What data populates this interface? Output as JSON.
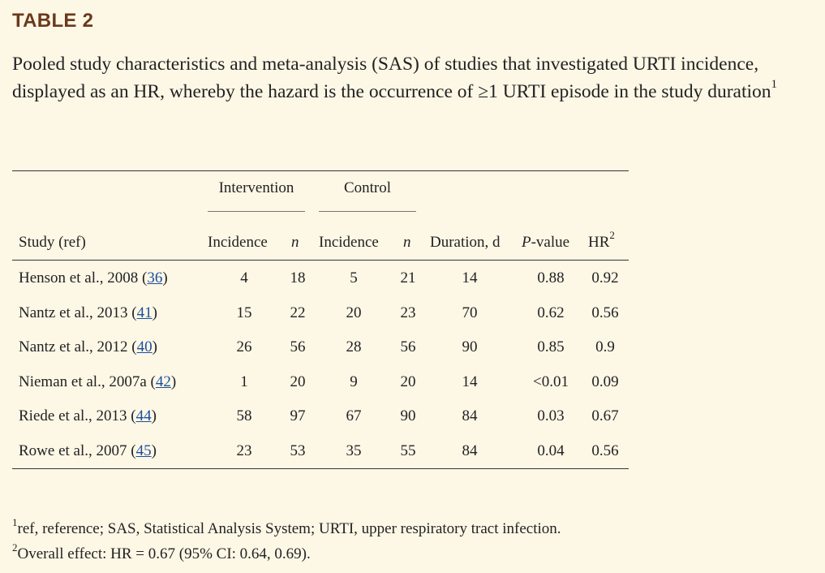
{
  "table_label": "TABLE 2",
  "caption": {
    "text": "Pooled study characteristics and meta-analysis (SAS) of studies that investigated URTI incidence, displayed as an HR, whereby the hazard is the occurrence of ≥1 URTI episode in the study duration",
    "footnote_mark": "1"
  },
  "table": {
    "group_headers": {
      "intervention": "Intervention",
      "control": "Control"
    },
    "columns": {
      "study": "Study (ref)",
      "int_incidence": "Incidence",
      "int_n": "n",
      "ctl_incidence": "Incidence",
      "ctl_n": "n",
      "duration": "Duration, d",
      "pvalue_italic": "P",
      "pvalue_rest": "-value",
      "hr": "HR",
      "hr_mark": "2"
    },
    "rows": [
      {
        "study": "Henson et al., 2008 (",
        "ref": "36",
        "close": ")",
        "int_incidence": "4",
        "int_n": "18",
        "ctl_incidence": "5",
        "ctl_n": "21",
        "duration": "14",
        "pvalue": "0.88",
        "hr": "0.92"
      },
      {
        "study": "Nantz et al., 2013 (",
        "ref": "41",
        "close": ")",
        "int_incidence": "15",
        "int_n": "22",
        "ctl_incidence": "20",
        "ctl_n": "23",
        "duration": "70",
        "pvalue": "0.62",
        "hr": "0.56"
      },
      {
        "study": "Nantz et al., 2012 (",
        "ref": "40",
        "close": ")",
        "int_incidence": "26",
        "int_n": "56",
        "ctl_incidence": "28",
        "ctl_n": "56",
        "duration": "90",
        "pvalue": "0.85",
        "hr": "0.9"
      },
      {
        "study": "Nieman et al., 2007a (",
        "ref": "42",
        "close": ")",
        "int_incidence": "1",
        "int_n": "20",
        "ctl_incidence": "9",
        "ctl_n": "20",
        "duration": "14",
        "pvalue": "<0.01",
        "hr": "0.09"
      },
      {
        "study": "Riede et al., 2013 (",
        "ref": "44",
        "close": ")",
        "int_incidence": "58",
        "int_n": "97",
        "ctl_incidence": "67",
        "ctl_n": "90",
        "duration": "84",
        "pvalue": "0.03",
        "hr": "0.67"
      },
      {
        "study": "Rowe et al., 2007 (",
        "ref": "45",
        "close": ")",
        "int_incidence": "23",
        "int_n": "53",
        "ctl_incidence": "35",
        "ctl_n": "55",
        "duration": "84",
        "pvalue": "0.04",
        "hr": "0.56"
      }
    ]
  },
  "footnotes": [
    {
      "mark": "1",
      "text": "ref, reference; SAS, Statistical Analysis System; URTI, upper respiratory tract infection."
    },
    {
      "mark": "2",
      "text": "Overall effect: HR = 0.67 (95% CI: 0.64, 0.69)."
    }
  ]
}
